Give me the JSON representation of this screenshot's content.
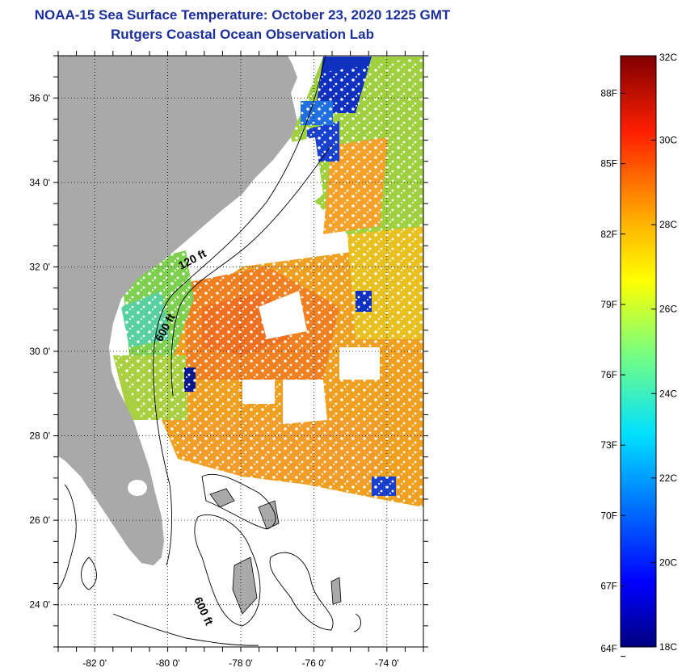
{
  "title": {
    "line1": "NOAA-15 Sea Surface Temperature:  October 23, 2020 1225 GMT",
    "line2": "Rutgers Coastal Ocean Observation Lab"
  },
  "map": {
    "lat_labels": [
      "36 0'",
      "34 0'",
      "32 0'",
      "30 0'",
      "28 0'",
      "26 0'",
      "24 0'"
    ],
    "lat_values": [
      36,
      34,
      32,
      30,
      28,
      26,
      24
    ],
    "lon_labels": [
      "-82 0'",
      "-80 0'",
      "-78 0'",
      "-76 0'",
      "-74 0'"
    ],
    "lon_values": [
      -82,
      -80,
      -78,
      -76,
      -74
    ],
    "lon_range": [
      -83,
      -73
    ],
    "lat_range": [
      23,
      37
    ],
    "isobath_labels": [
      "120 ft",
      "600 ft",
      "600 ft"
    ],
    "colors": {
      "land": "#a9a9a9",
      "no_data": "#ffffff"
    }
  },
  "colorbar": {
    "celsius_labels": [
      "32C",
      "30C",
      "28C",
      "26C",
      "24C",
      "22C",
      "20C",
      "18C"
    ],
    "fahrenheit_labels": [
      "88F",
      "85F",
      "82F",
      "79F",
      "76F",
      "73F",
      "70F",
      "67F",
      "64F"
    ],
    "range_c": [
      18,
      32
    ]
  }
}
